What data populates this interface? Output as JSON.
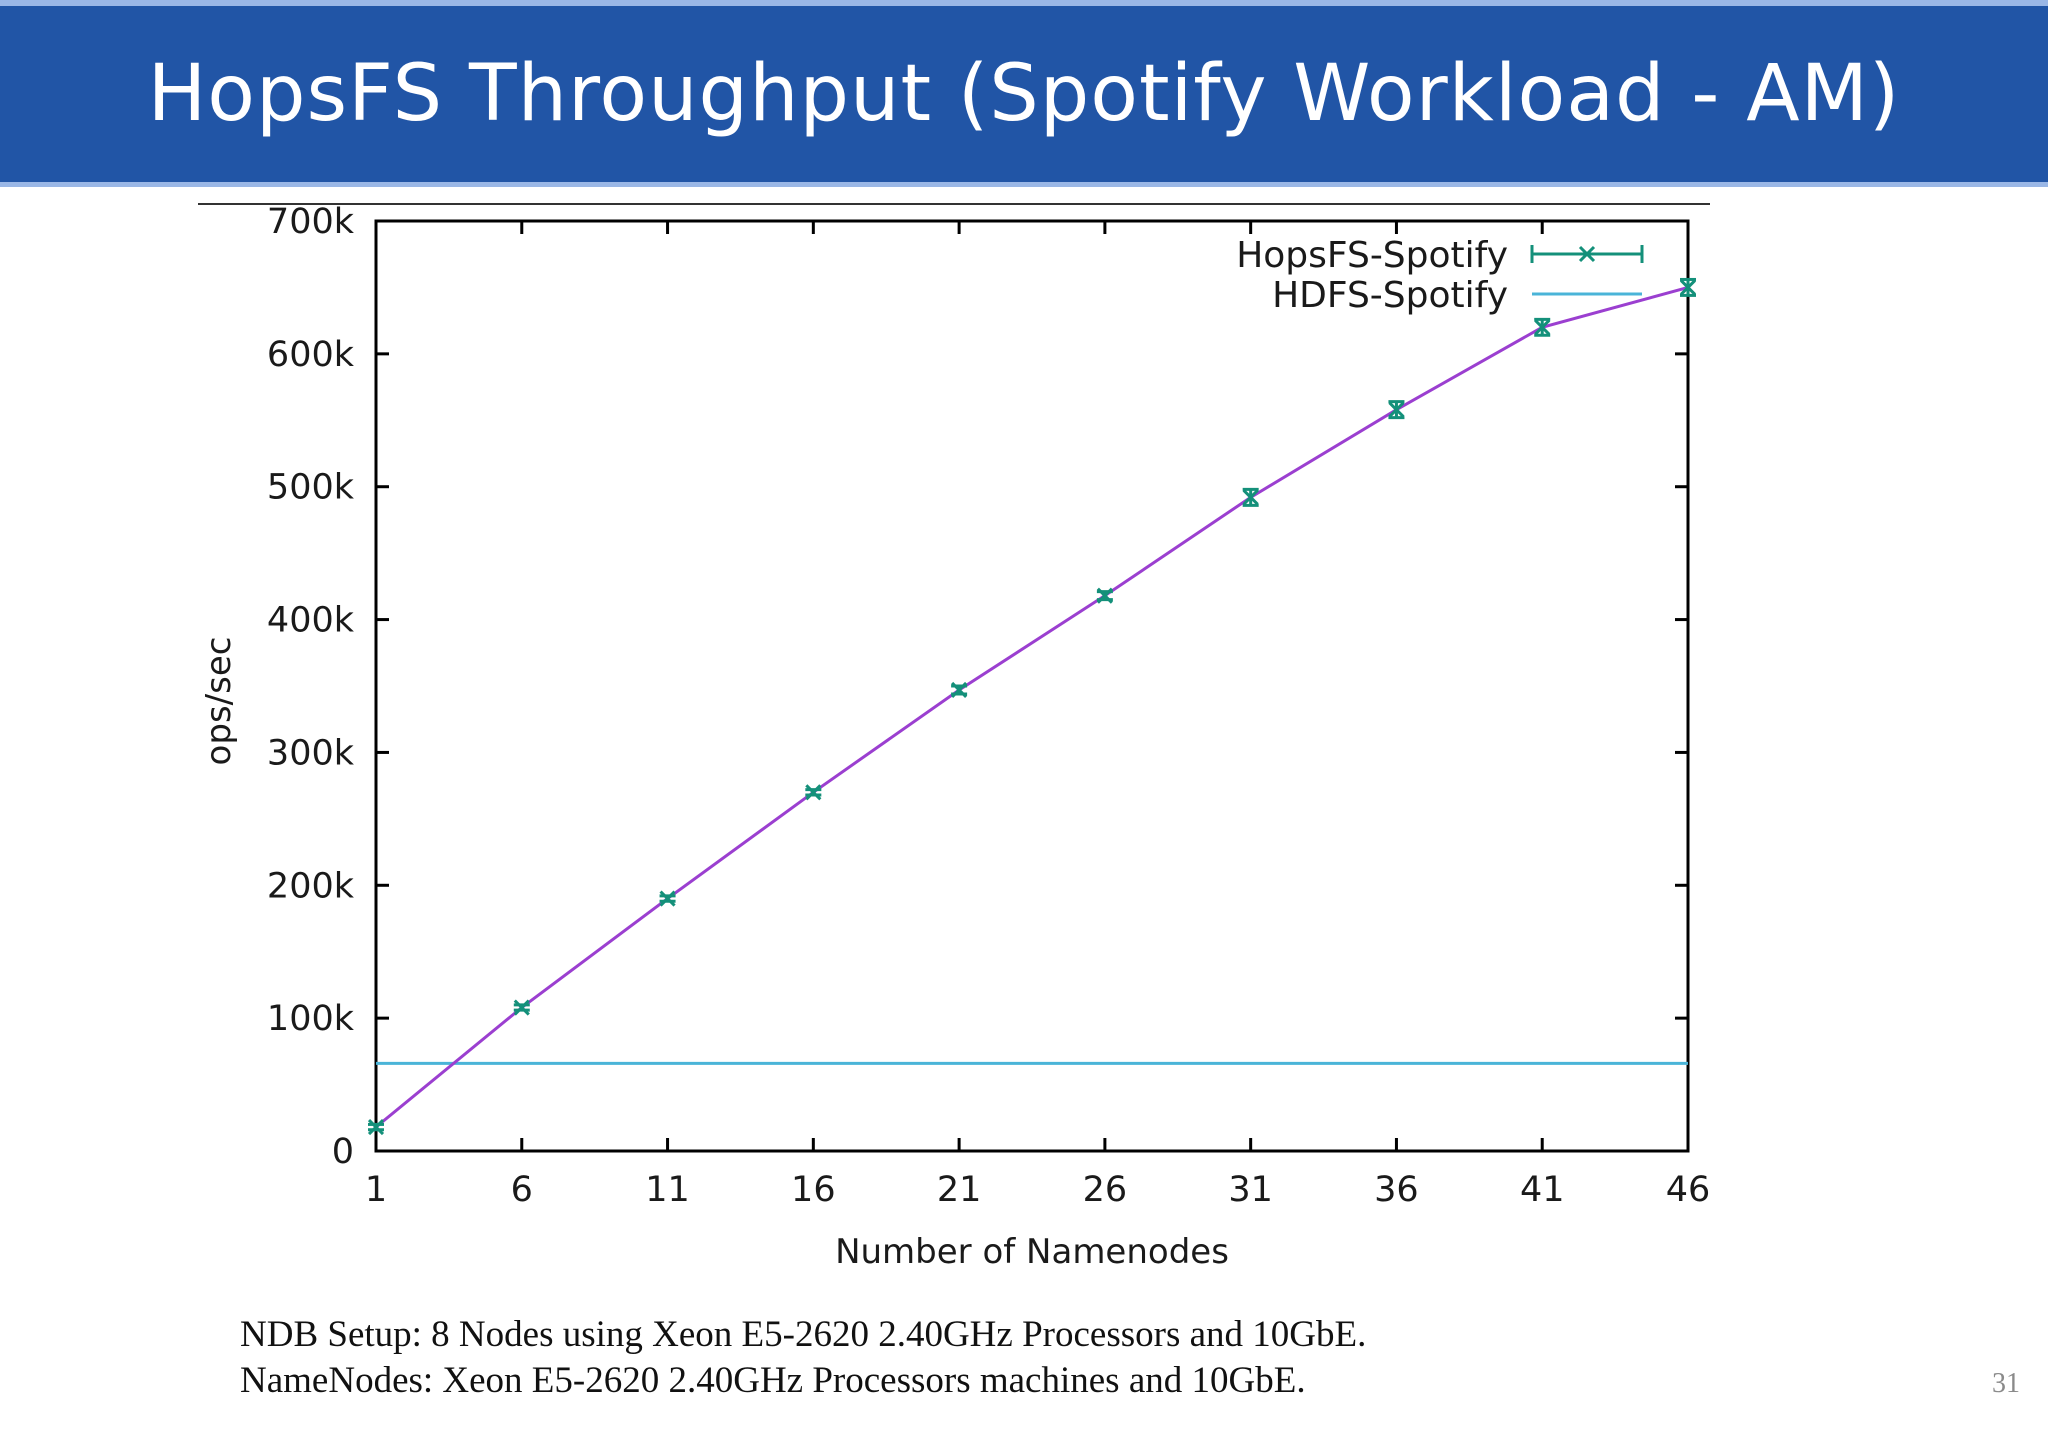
{
  "slide": {
    "title": "HopsFS Throughput (Spotify Workload - AM)",
    "footnote_line1": "NDB Setup: 8 Nodes using Xeon E5-2620 2.40GHz Processors and 10GbE.",
    "footnote_line2": "NameNodes: Xeon E5-2620 2.40GHz Processors machines and 10GbE.",
    "page_number": "31"
  },
  "colors": {
    "title_bar": "#2155a6",
    "hopsfs_line": "#9b3fd0",
    "hopsfs_marker": "#14907a",
    "hdfs_line": "#4ab4d8"
  },
  "chart_data": {
    "type": "line",
    "xlabel": "Number of Namenodes",
    "ylabel": "ops/sec",
    "x": [
      1,
      6,
      11,
      16,
      21,
      26,
      31,
      36,
      41,
      46
    ],
    "xticks": [
      "1",
      "6",
      "11",
      "16",
      "21",
      "26",
      "31",
      "36",
      "41",
      "46"
    ],
    "yticks": [
      0,
      100000,
      200000,
      300000,
      400000,
      500000,
      600000,
      700000
    ],
    "ytick_labels": [
      "0",
      "100k",
      "200k",
      "300k",
      "400k",
      "500k",
      "600k",
      "700k"
    ],
    "xlim": [
      1,
      46
    ],
    "ylim": [
      0,
      700000
    ],
    "legend_position": "top-right",
    "series": [
      {
        "name": "HopsFS-Spotify",
        "style": "line with x markers and error bars",
        "values": [
          18000,
          108000,
          190000,
          270000,
          347000,
          418000,
          492000,
          558000,
          620000,
          650000
        ],
        "error": [
          2000,
          2000,
          2000,
          2000,
          3000,
          3000,
          6000,
          6000,
          6000,
          6000
        ]
      },
      {
        "name": "HDFS-Spotify",
        "style": "horizontal line",
        "constant_value": 66000
      }
    ]
  }
}
